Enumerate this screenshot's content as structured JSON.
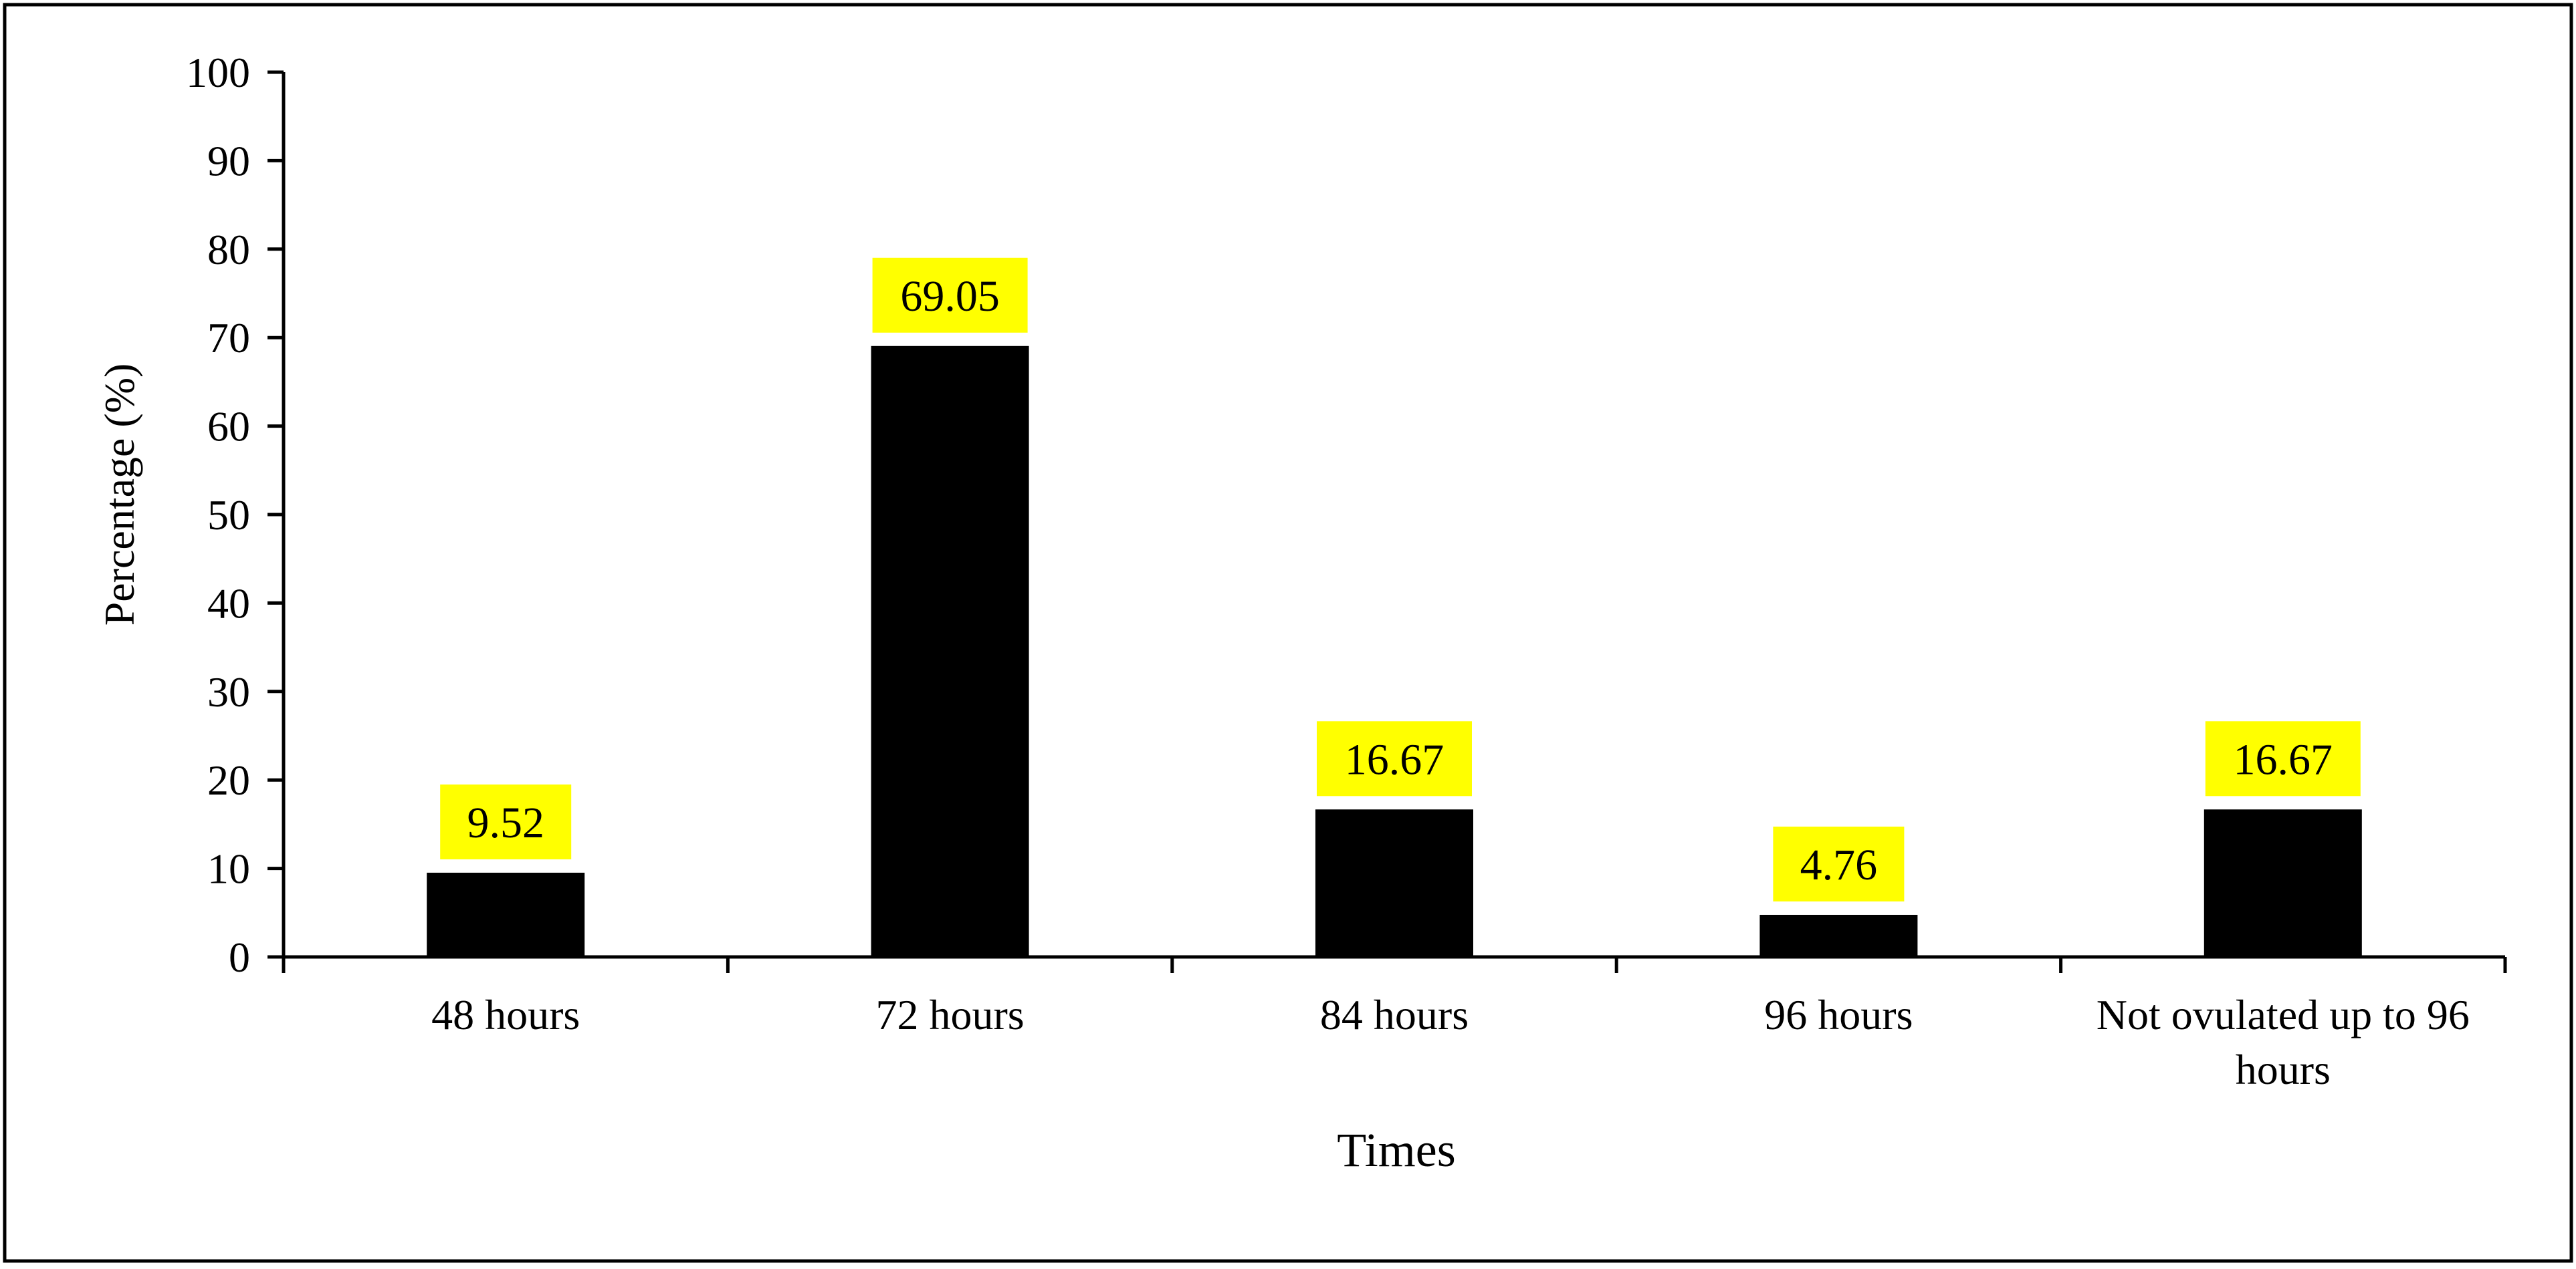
{
  "chart_data": {
    "type": "bar",
    "title": "",
    "xlabel": "Times",
    "ylabel": "Percentage (%)",
    "categories": [
      "48 hours",
      "72 hours",
      "84 hours",
      "96 hours",
      "Not ovulated up to 96 hours"
    ],
    "values": [
      9.52,
      69.05,
      16.67,
      4.76,
      16.67
    ],
    "data_labels": [
      "9.52",
      "69.05",
      "16.67",
      "4.76",
      "16.67"
    ],
    "ylim": [
      0,
      100
    ],
    "yticks": [
      0,
      10,
      20,
      30,
      40,
      50,
      60,
      70,
      80,
      90,
      100
    ],
    "grid": false,
    "legend": "none",
    "colors": {
      "bar": "#000000",
      "data_label_background": "#ffff00",
      "axis": "#000000",
      "frame": "#000000",
      "background": "#ffffff"
    }
  }
}
